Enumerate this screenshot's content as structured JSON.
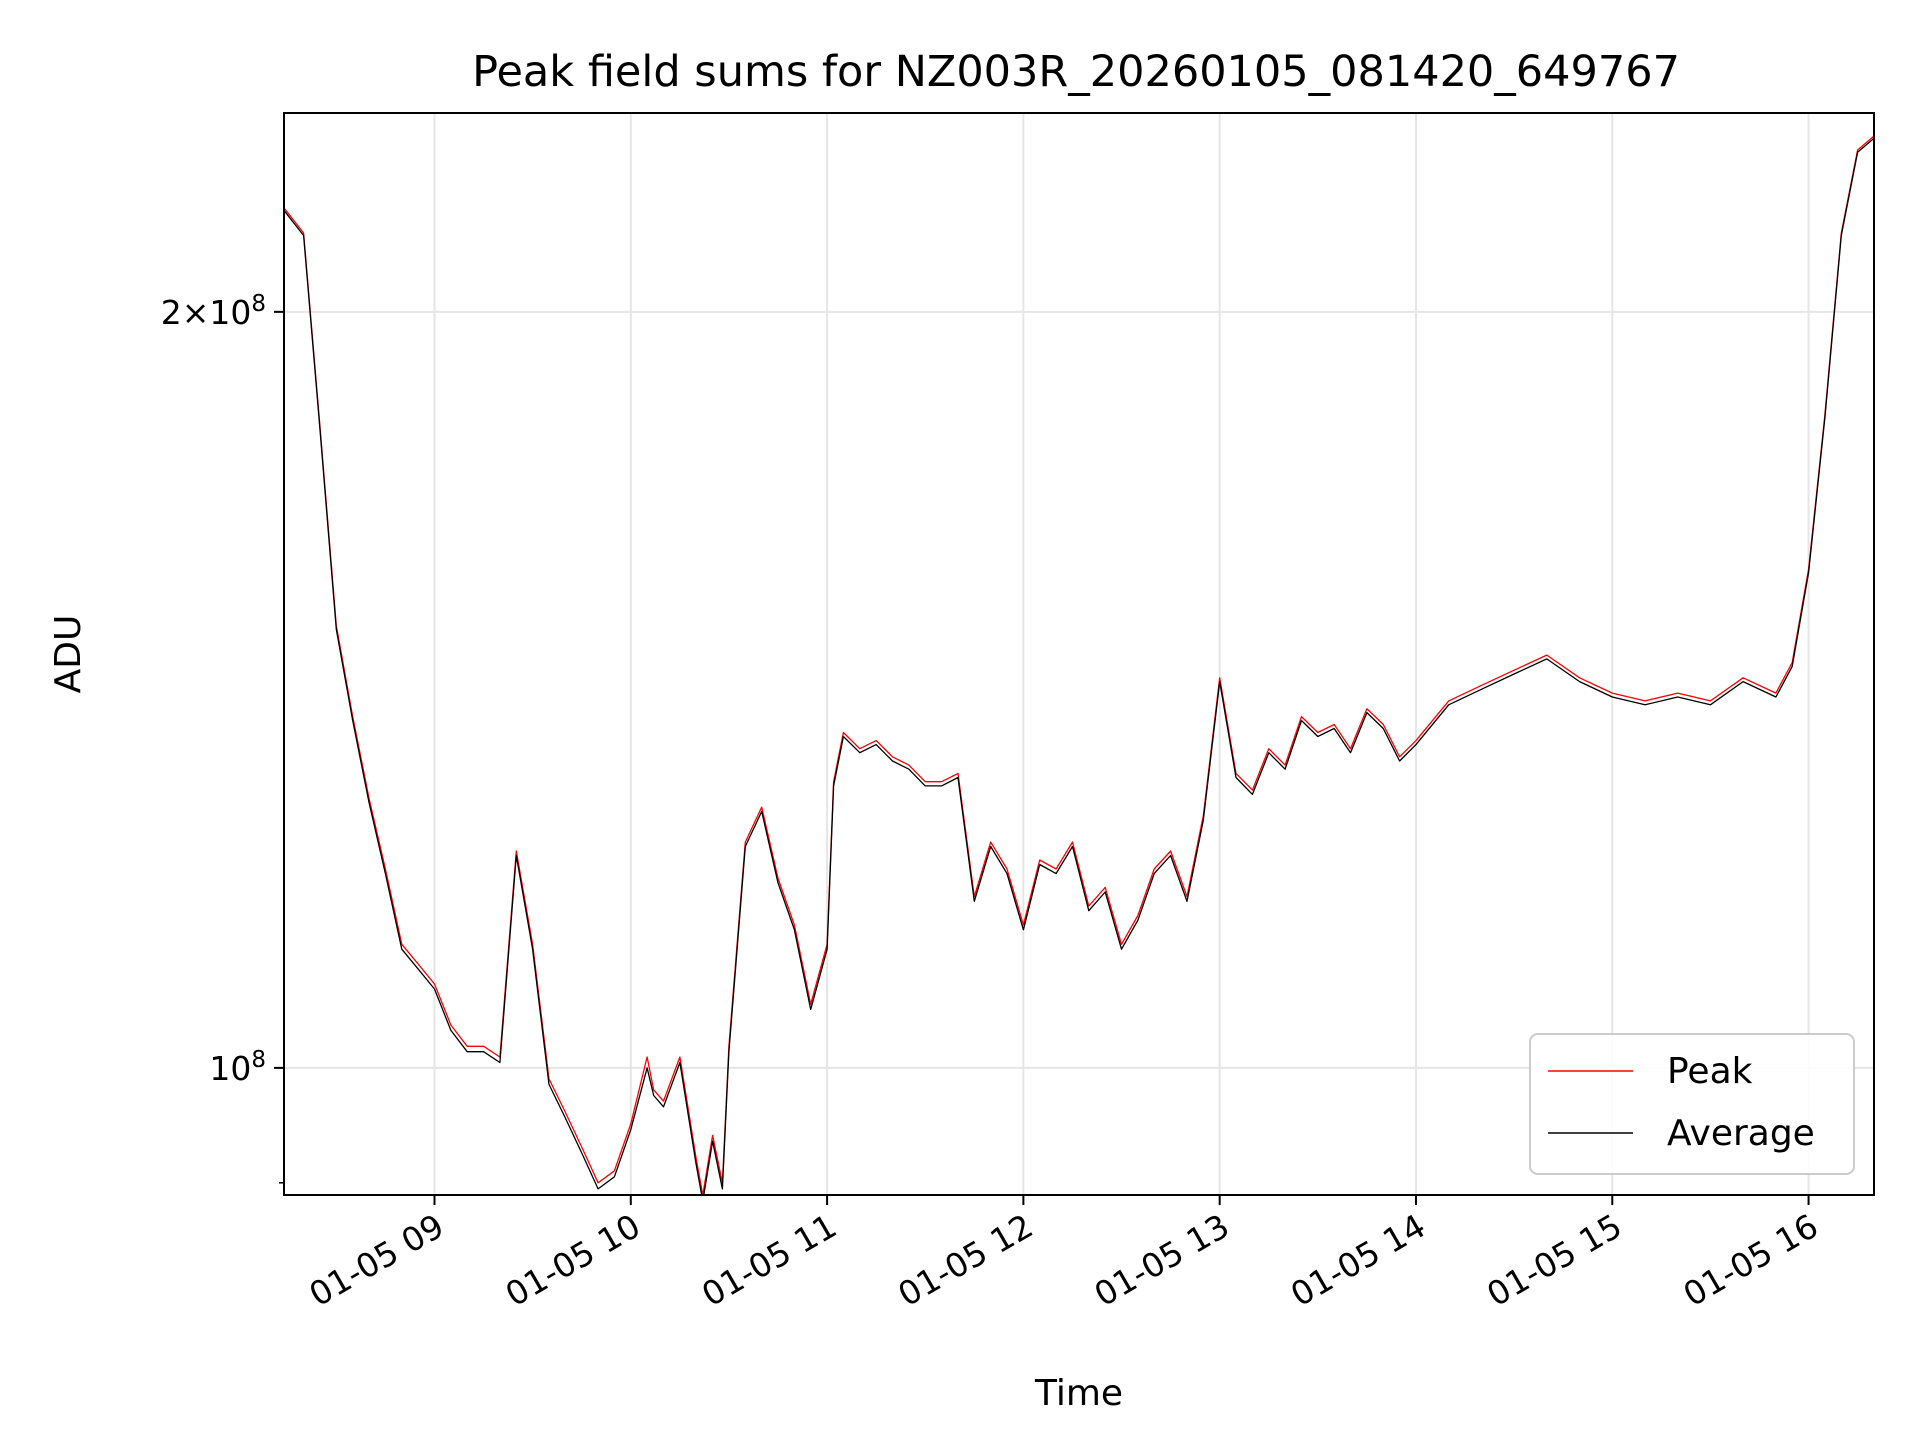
{
  "chart_data": {
    "type": "line",
    "title": "Peak field sums for NZ003R_20260105_081420_649767",
    "xlabel": "Time",
    "ylabel": "ADU",
    "y_scale": "log",
    "ylim": [
      89000000,
      240000000
    ],
    "xlim": [
      "2026-01-05 08:14",
      "2026-01-05 16:20"
    ],
    "x_ticks": [
      {
        "value": "2026-01-05 09:00",
        "label": "01-05 09"
      },
      {
        "value": "2026-01-05 10:00",
        "label": "01-05 10"
      },
      {
        "value": "2026-01-05 11:00",
        "label": "01-05 11"
      },
      {
        "value": "2026-01-05 12:00",
        "label": "01-05 12"
      },
      {
        "value": "2026-01-05 13:00",
        "label": "01-05 13"
      },
      {
        "value": "2026-01-05 14:00",
        "label": "01-05 14"
      },
      {
        "value": "2026-01-05 15:00",
        "label": "01-05 15"
      },
      {
        "value": "2026-01-05 16:00",
        "label": "01-05 16"
      }
    ],
    "y_ticks": [
      {
        "value": 100000000,
        "base": "10",
        "exp": "8",
        "mult": ""
      },
      {
        "value": 200000000,
        "base": "10",
        "exp": "8",
        "mult": "2×"
      }
    ],
    "grid": true,
    "legend_position": "bottom-right",
    "x": [
      "08:14",
      "08:20",
      "08:25",
      "08:30",
      "08:35",
      "08:40",
      "08:45",
      "08:50",
      "08:55",
      "09:00",
      "09:05",
      "09:10",
      "09:15",
      "09:20",
      "09:25",
      "09:30",
      "09:35",
      "09:40",
      "09:45",
      "09:50",
      "09:55",
      "10:00",
      "10:05",
      "10:07",
      "10:10",
      "10:15",
      "10:20",
      "10:22",
      "10:25",
      "10:28",
      "10:30",
      "10:35",
      "10:40",
      "10:45",
      "10:50",
      "10:55",
      "11:00",
      "11:02",
      "11:05",
      "11:10",
      "11:15",
      "11:20",
      "11:25",
      "11:30",
      "11:35",
      "11:40",
      "11:45",
      "11:50",
      "11:55",
      "12:00",
      "12:05",
      "12:10",
      "12:15",
      "12:20",
      "12:25",
      "12:30",
      "12:35",
      "12:40",
      "12:45",
      "12:50",
      "12:55",
      "13:00",
      "13:05",
      "13:10",
      "13:15",
      "13:20",
      "13:25",
      "13:30",
      "13:35",
      "13:40",
      "13:45",
      "13:50",
      "13:55",
      "14:00",
      "14:10",
      "14:20",
      "14:30",
      "14:40",
      "14:50",
      "15:00",
      "15:10",
      "15:20",
      "15:30",
      "15:40",
      "15:50",
      "15:55",
      "16:00",
      "16:05",
      "16:10",
      "16:15",
      "16:20"
    ],
    "series": [
      {
        "name": "Peak",
        "color": "#ff0000",
        "width": 1.3,
        "values": [
          220000000,
          215000000,
          180000000,
          150000000,
          138000000,
          128000000,
          120000000,
          112000000,
          110000000,
          108000000,
          104000000,
          102000000,
          102000000,
          101000000,
          122000000,
          112000000,
          99000000,
          96000000,
          93000000,
          90000000,
          91000000,
          95000000,
          101000000,
          98000000,
          97000000,
          101000000,
          92000000,
          89000000,
          94000000,
          90000000,
          102000000,
          123000000,
          127000000,
          119000000,
          114000000,
          106000000,
          112000000,
          130000000,
          136000000,
          134000000,
          135000000,
          133000000,
          132000000,
          130000000,
          130000000,
          131000000,
          117000000,
          123000000,
          120000000,
          114000000,
          121000000,
          120000000,
          123000000,
          116000000,
          118000000,
          112000000,
          115000000,
          120000000,
          122000000,
          117000000,
          126000000,
          143000000,
          131000000,
          129000000,
          134000000,
          132000000,
          138000000,
          136000000,
          137000000,
          134000000,
          139000000,
          137000000,
          133000000,
          135000000,
          140000000,
          142000000,
          144000000,
          146000000,
          143000000,
          141000000,
          140000000,
          141000000,
          140000000,
          143000000,
          141000000,
          145000000,
          158000000,
          182000000,
          215000000,
          232000000,
          235000000
        ]
      },
      {
        "name": "Average",
        "color": "#000000",
        "width": 1.3,
        "values": [
          219500000,
          214500000,
          179500000,
          149500000,
          137500000,
          127500000,
          119500000,
          111500000,
          109500000,
          107500000,
          103500000,
          101500000,
          101500000,
          100500000,
          121500000,
          111500000,
          98500000,
          95500000,
          92500000,
          89500000,
          90500000,
          94500000,
          100000000,
          97500000,
          96500000,
          100500000,
          91500000,
          88500000,
          93500000,
          89500000,
          101500000,
          122500000,
          126500000,
          118500000,
          113500000,
          105500000,
          111500000,
          129500000,
          135500000,
          133500000,
          134500000,
          132500000,
          131500000,
          129500000,
          129500000,
          130500000,
          116500000,
          122500000,
          119500000,
          113500000,
          120500000,
          119500000,
          122500000,
          115500000,
          117500000,
          111500000,
          114500000,
          119500000,
          121500000,
          116500000,
          125500000,
          142500000,
          130500000,
          128500000,
          133500000,
          131500000,
          137500000,
          135500000,
          136500000,
          133500000,
          138500000,
          136500000,
          132500000,
          134500000,
          139500000,
          141500000,
          143500000,
          145500000,
          142500000,
          140500000,
          139500000,
          140500000,
          139500000,
          142500000,
          140500000,
          144500000,
          157500000,
          181500000,
          214500000,
          231500000,
          234500000
        ]
      }
    ]
  }
}
